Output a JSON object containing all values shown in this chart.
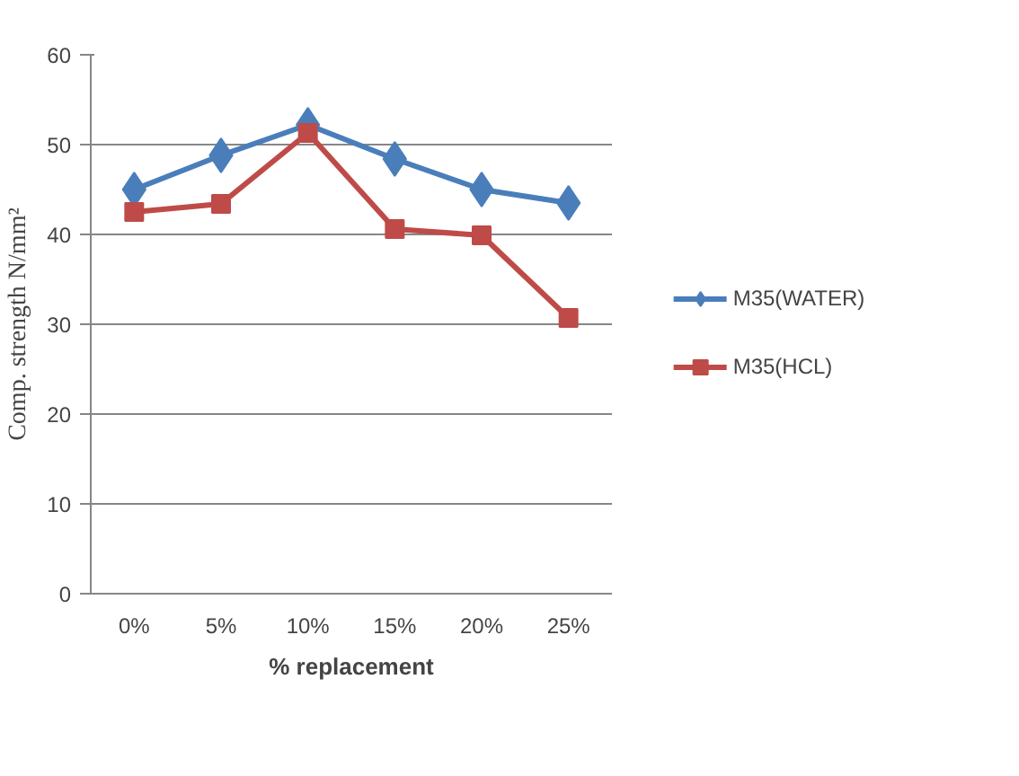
{
  "chart_data": {
    "type": "line",
    "xlabel": "% replacement",
    "ylabel": "Comp. strength N/mm²",
    "categories": [
      "0%",
      "5%",
      "10%",
      "15%",
      "20%",
      "25%"
    ],
    "series": [
      {
        "name": "M35(WATER)",
        "color": "#4a7ebb",
        "marker": "diamond",
        "values": [
          45,
          48.8,
          52.2,
          48.4,
          45,
          43.5
        ]
      },
      {
        "name": "M35(HCL)",
        "color": "#be4b48",
        "marker": "square",
        "values": [
          42.5,
          43.4,
          51.3,
          40.6,
          39.9,
          30.7
        ]
      }
    ],
    "ylim": [
      0,
      60
    ],
    "yticks": [
      0,
      10,
      20,
      30,
      40,
      50,
      60
    ],
    "grid": "y",
    "legend": "right",
    "line_style": "solid"
  }
}
